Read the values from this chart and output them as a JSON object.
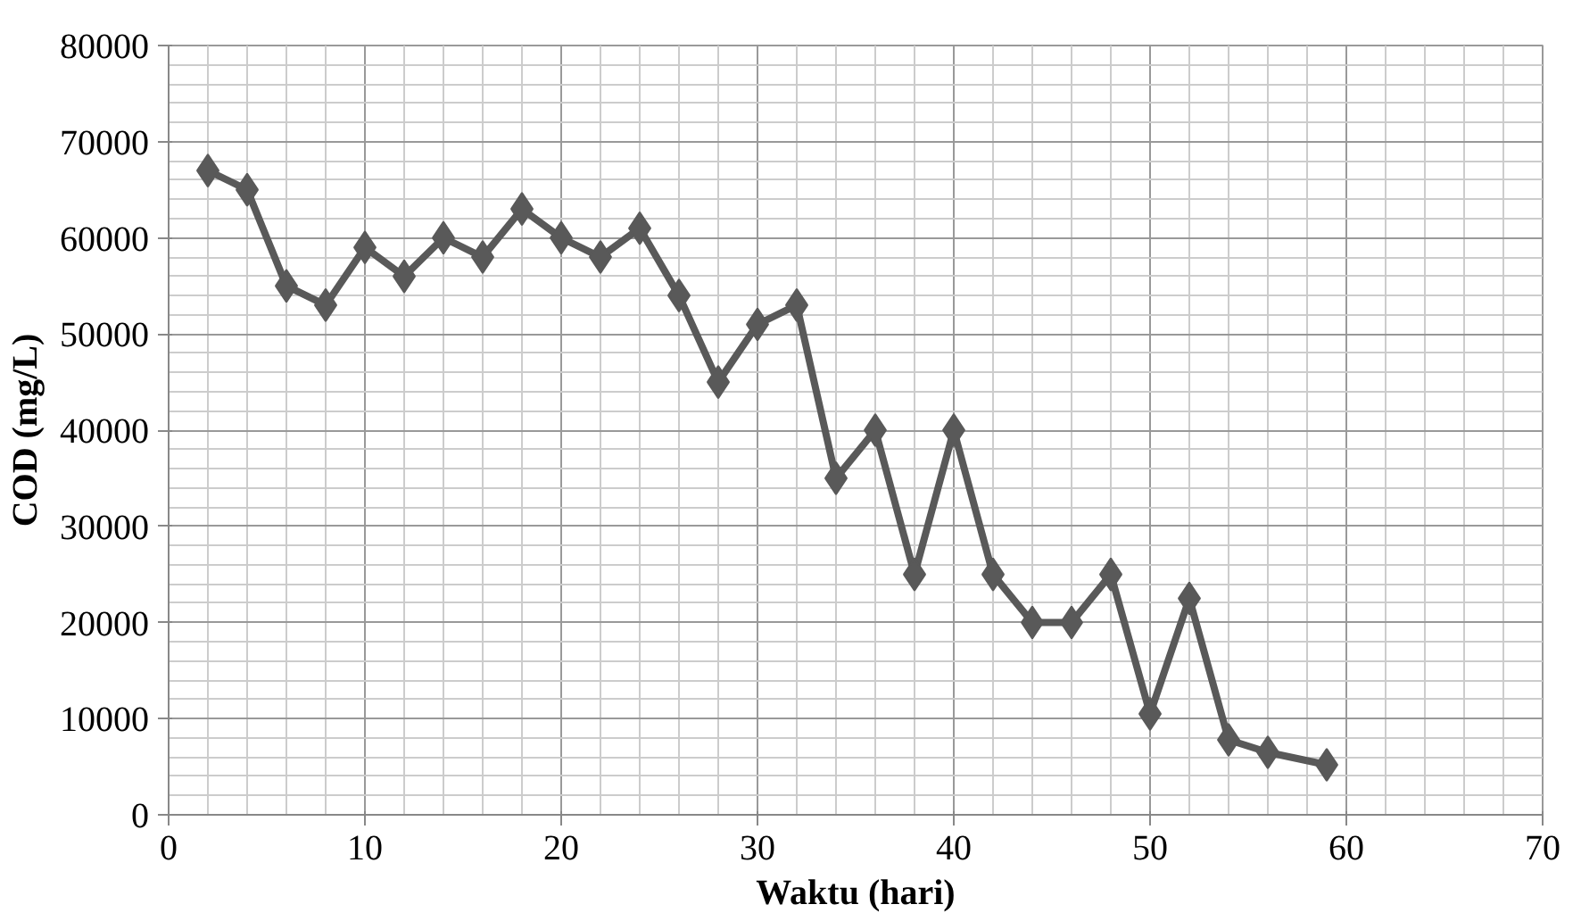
{
  "chart_data": {
    "type": "line",
    "xlabel": "Waktu (hari)",
    "ylabel": "COD (mg/L)",
    "x": [
      2,
      4,
      6,
      8,
      10,
      12,
      14,
      16,
      18,
      20,
      22,
      24,
      26,
      28,
      30,
      32,
      34,
      36,
      38,
      40,
      42,
      44,
      46,
      48,
      50,
      52,
      54,
      56,
      59
    ],
    "series": [
      {
        "color": "#595959",
        "values": [
          67000,
          65000,
          55000,
          53000,
          59000,
          56000,
          60000,
          58000,
          63000,
          60000,
          58000,
          61000,
          54000,
          45000,
          51000,
          53000,
          35000,
          40000,
          25000,
          40000,
          25000,
          20000,
          20000,
          25000,
          10500,
          22500,
          7800,
          6500,
          5200
        ]
      }
    ],
    "xlim": [
      0,
      70
    ],
    "xticks": [
      0,
      10,
      20,
      30,
      40,
      50,
      60,
      70
    ],
    "ylim": [
      0,
      80000
    ],
    "yticks": [
      0,
      10000,
      20000,
      30000,
      40000,
      50000,
      60000,
      70000,
      80000
    ],
    "grid": true,
    "marker": "diamond",
    "line_style": "solid"
  }
}
